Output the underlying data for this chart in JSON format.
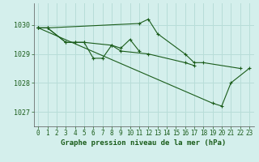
{
  "background_color": "#d4efec",
  "grid_color": "#b8ddd8",
  "line_color": "#1a5c1a",
  "title": "Graphe pression niveau de la mer (hPa)",
  "hours": [
    0,
    1,
    2,
    3,
    4,
    5,
    6,
    7,
    8,
    9,
    10,
    11,
    12,
    13,
    14,
    15,
    16,
    17,
    18,
    19,
    20,
    21,
    22,
    23
  ],
  "ylim": [
    1026.5,
    1030.75
  ],
  "yticks": [
    1027,
    1028,
    1029,
    1030
  ],
  "series": [
    {
      "x": [
        0,
        1,
        11,
        12,
        13,
        16,
        17,
        18,
        22
      ],
      "y": [
        1029.9,
        1029.9,
        1030.05,
        1030.2,
        1029.7,
        1029.0,
        1028.7,
        1028.7,
        1028.5
      ]
    },
    {
      "x": [
        0,
        1,
        3,
        4,
        5,
        6,
        7,
        8,
        9,
        10,
        11
      ],
      "y": [
        1029.9,
        1029.9,
        1029.4,
        1029.4,
        1029.4,
        1028.85,
        1028.85,
        1029.3,
        1029.2,
        1029.5,
        1029.1
      ]
    },
    {
      "x": [
        0,
        1,
        3,
        4,
        5,
        8,
        9,
        12,
        16,
        17
      ],
      "y": [
        1029.9,
        1029.9,
        1029.4,
        1029.4,
        1029.4,
        1029.3,
        1029.1,
        1029.0,
        1028.7,
        1028.6
      ]
    },
    {
      "x": [
        0,
        19,
        20,
        21,
        23
      ],
      "y": [
        1029.9,
        1027.3,
        1027.2,
        1028.0,
        1028.5
      ]
    }
  ],
  "tick_color": "#1a5c1a",
  "tick_fontsize": 5.5,
  "title_fontsize": 6.5,
  "figsize": [
    3.2,
    2.0
  ],
  "dpi": 100
}
